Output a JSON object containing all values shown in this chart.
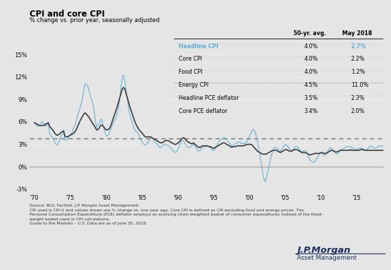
{
  "title": "CPI and core CPI",
  "subtitle": "% change vs. prior year, seasonally adjusted",
  "background_color": "#e5e5e5",
  "plot_background_color": "#e5e5e5",
  "headline_color": "#5badd6",
  "core_color": "#3a3a3a",
  "dashed_line_value": 3.82,
  "ylim": [
    -3.5,
    16.5
  ],
  "yticks": [
    -3,
    0,
    3,
    6,
    9,
    12,
    15
  ],
  "ytick_labels": [
    "-3%",
    "0%",
    "3%",
    "6%",
    "9%",
    "12%",
    "15%"
  ],
  "xlim_start": 1969.3,
  "xlim_end": 2018.7,
  "xtick_years": [
    1970,
    1975,
    1980,
    1985,
    1990,
    1995,
    2000,
    2005,
    2010,
    2015
  ],
  "xtick_labels": [
    "'70",
    "'75",
    "'80",
    "'85",
    "'90",
    "'95",
    "'00",
    "'05",
    "'10",
    "'15"
  ],
  "source_text": "Source: BLS, FactSet, J.P. Morgan Asset Management.\nCPI used is CPI-U and values shown are % change vs. one year ago. Core CPI is defined as CPI excluding food and energy prices. The\nPersonal Consumption Expenditure (PCE) deflator employs an evolving chain-weighted basket of consumer expenditures instead of the fixed-\nweight basket used in CPI calculations.\nGuide to the Markets – U.S. Data are as of June 30, 2018.",
  "table_data": {
    "headers": [
      "",
      "50-yr. avg.",
      "May 2018"
    ],
    "rows": [
      [
        "Headline CPI",
        "4.0%",
        "2.7%"
      ],
      [
        "Core CPI",
        "4.0%",
        "2.2%"
      ],
      [
        "Food CPI",
        "4.0%",
        "1.2%"
      ],
      [
        "Energy CPI",
        "4.5%",
        "11.0%"
      ],
      [
        "Headline PCE deflator",
        "3.5%",
        "2.3%"
      ],
      [
        "Core PCE deflator",
        "3.4%",
        "2.0%"
      ]
    ],
    "headline_row": 0
  },
  "headline_cpi": [
    5.9,
    5.7,
    5.5,
    5.4,
    5.5,
    5.8,
    6.0,
    5.9,
    5.7,
    5.4,
    5.6,
    5.9,
    4.4,
    4.2,
    4.0,
    3.7,
    3.3,
    3.0,
    2.9,
    3.2,
    3.7,
    4.2,
    4.4,
    4.6,
    3.6,
    3.5,
    3.7,
    4.1,
    4.3,
    4.4,
    4.7,
    5.2,
    5.6,
    6.2,
    6.9,
    7.4,
    8.0,
    8.5,
    9.4,
    10.5,
    11.1,
    11.0,
    10.7,
    10.1,
    9.5,
    8.9,
    8.4,
    7.4,
    6.1,
    5.3,
    5.5,
    5.9,
    6.3,
    6.3,
    5.5,
    4.9,
    4.3,
    4.1,
    4.2,
    4.6,
    5.0,
    5.5,
    5.9,
    6.2,
    6.5,
    7.1,
    7.9,
    9.0,
    10.7,
    12.0,
    12.2,
    11.4,
    10.2,
    9.1,
    7.8,
    7.0,
    6.4,
    5.8,
    5.2,
    4.9,
    4.7,
    4.6,
    4.3,
    3.8,
    3.5,
    3.2,
    3.0,
    2.9,
    3.0,
    3.2,
    3.5,
    3.8,
    4.0,
    3.8,
    3.5,
    3.2,
    3.1,
    2.9,
    2.7,
    2.6,
    2.7,
    2.9,
    3.0,
    3.0,
    2.9,
    2.8,
    2.7,
    2.5,
    2.3,
    2.1,
    2.0,
    1.9,
    2.1,
    2.5,
    2.9,
    3.3,
    3.5,
    3.5,
    3.2,
    2.9,
    2.7,
    2.6,
    2.6,
    2.7,
    2.9,
    3.0,
    2.8,
    2.5,
    2.2,
    2.1,
    2.2,
    2.4,
    2.6,
    2.7,
    2.7,
    2.7,
    2.8,
    2.7,
    2.6,
    2.4,
    2.2,
    2.2,
    2.4,
    2.7,
    3.1,
    3.4,
    3.6,
    3.7,
    3.8,
    3.9,
    3.8,
    3.6,
    3.4,
    3.2,
    3.0,
    2.8,
    2.9,
    3.0,
    3.1,
    3.2,
    3.3,
    3.3,
    3.2,
    3.1,
    3.1,
    3.1,
    3.2,
    3.4,
    3.7,
    4.1,
    4.5,
    4.9,
    5.0,
    4.8,
    4.2,
    3.4,
    2.5,
    1.5,
    0.5,
    -0.5,
    -1.5,
    -2.0,
    -1.6,
    -0.8,
    0.0,
    0.8,
    1.5,
    2.0,
    2.4,
    2.6,
    2.5,
    2.4,
    2.2,
    2.1,
    2.3,
    2.5,
    2.8,
    3.0,
    2.9,
    2.7,
    2.5,
    2.3,
    2.2,
    2.2,
    2.5,
    2.7,
    2.7,
    2.6,
    2.3,
    2.1,
    2.0,
    2.1,
    2.2,
    2.1,
    1.8,
    1.4,
    1.0,
    0.8,
    0.7,
    0.6,
    0.7,
    0.9,
    1.2,
    1.5,
    1.8,
    1.9,
    1.8,
    1.6,
    1.5,
    1.7,
    2.0,
    2.3,
    2.5,
    2.5,
    2.3,
    2.1,
    1.9,
    1.7,
    1.8,
    2.0,
    2.2,
    2.3,
    2.4,
    2.5,
    2.6,
    2.7,
    2.7,
    2.7,
    2.7,
    2.6,
    2.5,
    2.4,
    2.3,
    2.3,
    2.4,
    2.5,
    2.5,
    2.5,
    2.4,
    2.3,
    2.2,
    2.3,
    2.5,
    2.7,
    2.8,
    2.7,
    2.6,
    2.5,
    2.5,
    2.6,
    2.7,
    2.8,
    2.8,
    2.8,
    2.7,
    2.7
  ],
  "core_cpi": [
    5.9,
    5.8,
    5.7,
    5.6,
    5.5,
    5.5,
    5.5,
    5.5,
    5.6,
    5.7,
    5.8,
    5.9,
    5.4,
    5.2,
    5.0,
    4.8,
    4.5,
    4.3,
    4.2,
    4.3,
    4.4,
    4.6,
    4.7,
    4.8,
    4.1,
    4.0,
    4.0,
    4.1,
    4.2,
    4.3,
    4.4,
    4.5,
    4.7,
    5.0,
    5.4,
    5.8,
    6.2,
    6.5,
    6.8,
    7.1,
    7.2,
    7.0,
    6.8,
    6.6,
    6.3,
    6.0,
    5.7,
    5.5,
    5.2,
    4.9,
    5.0,
    5.2,
    5.5,
    5.6,
    5.4,
    5.2,
    5.0,
    4.9,
    5.0,
    5.1,
    5.5,
    6.0,
    6.5,
    7.0,
    7.5,
    8.0,
    8.6,
    9.2,
    9.8,
    10.4,
    10.6,
    10.4,
    9.8,
    9.2,
    8.6,
    8.0,
    7.5,
    7.0,
    6.5,
    6.0,
    5.6,
    5.3,
    5.0,
    4.8,
    4.6,
    4.4,
    4.2,
    4.0,
    4.0,
    4.0,
    4.0,
    4.0,
    3.9,
    3.8,
    3.7,
    3.6,
    3.5,
    3.4,
    3.3,
    3.2,
    3.2,
    3.3,
    3.4,
    3.5,
    3.5,
    3.5,
    3.4,
    3.3,
    3.2,
    3.1,
    3.0,
    3.0,
    3.1,
    3.2,
    3.4,
    3.6,
    3.8,
    3.9,
    3.8,
    3.6,
    3.4,
    3.3,
    3.2,
    3.1,
    3.1,
    3.2,
    3.0,
    2.9,
    2.7,
    2.6,
    2.6,
    2.7,
    2.8,
    2.8,
    2.8,
    2.8,
    2.8,
    2.7,
    2.7,
    2.6,
    2.5,
    2.5,
    2.6,
    2.7,
    2.8,
    2.9,
    3.0,
    3.1,
    3.2,
    3.2,
    3.1,
    3.0,
    2.9,
    2.8,
    2.7,
    2.6,
    2.7,
    2.7,
    2.7,
    2.8,
    2.8,
    2.8,
    2.8,
    2.8,
    2.8,
    2.9,
    2.9,
    3.0,
    3.0,
    3.0,
    3.0,
    2.9,
    2.7,
    2.5,
    2.3,
    2.1,
    2.0,
    1.9,
    1.8,
    1.7,
    1.7,
    1.7,
    1.7,
    1.8,
    1.9,
    2.0,
    2.1,
    2.2,
    2.2,
    2.2,
    2.2,
    2.1,
    2.0,
    1.9,
    2.0,
    2.1,
    2.2,
    2.3,
    2.3,
    2.2,
    2.1,
    2.1,
    2.1,
    2.2,
    2.3,
    2.3,
    2.3,
    2.2,
    2.1,
    2.0,
    1.9,
    1.9,
    1.9,
    1.9,
    1.8,
    1.7,
    1.6,
    1.6,
    1.7,
    1.7,
    1.8,
    1.8,
    1.8,
    1.8,
    1.8,
    1.9,
    1.9,
    1.8,
    1.8,
    1.8,
    1.9,
    2.0,
    2.1,
    2.2,
    2.2,
    2.1,
    2.0,
    2.0,
    2.0,
    2.1,
    2.2,
    2.2,
    2.2,
    2.2,
    2.2,
    2.2,
    2.2,
    2.2,
    2.3,
    2.2,
    2.2,
    2.2,
    2.2,
    2.2,
    2.2,
    2.2,
    2.3,
    2.3,
    2.3,
    2.2,
    2.2,
    2.2,
    2.2,
    2.2,
    2.2,
    2.2,
    2.2,
    2.2,
    2.2,
    2.2,
    2.2,
    2.2,
    2.2,
    2.2,
    2.2,
    2.2
  ]
}
